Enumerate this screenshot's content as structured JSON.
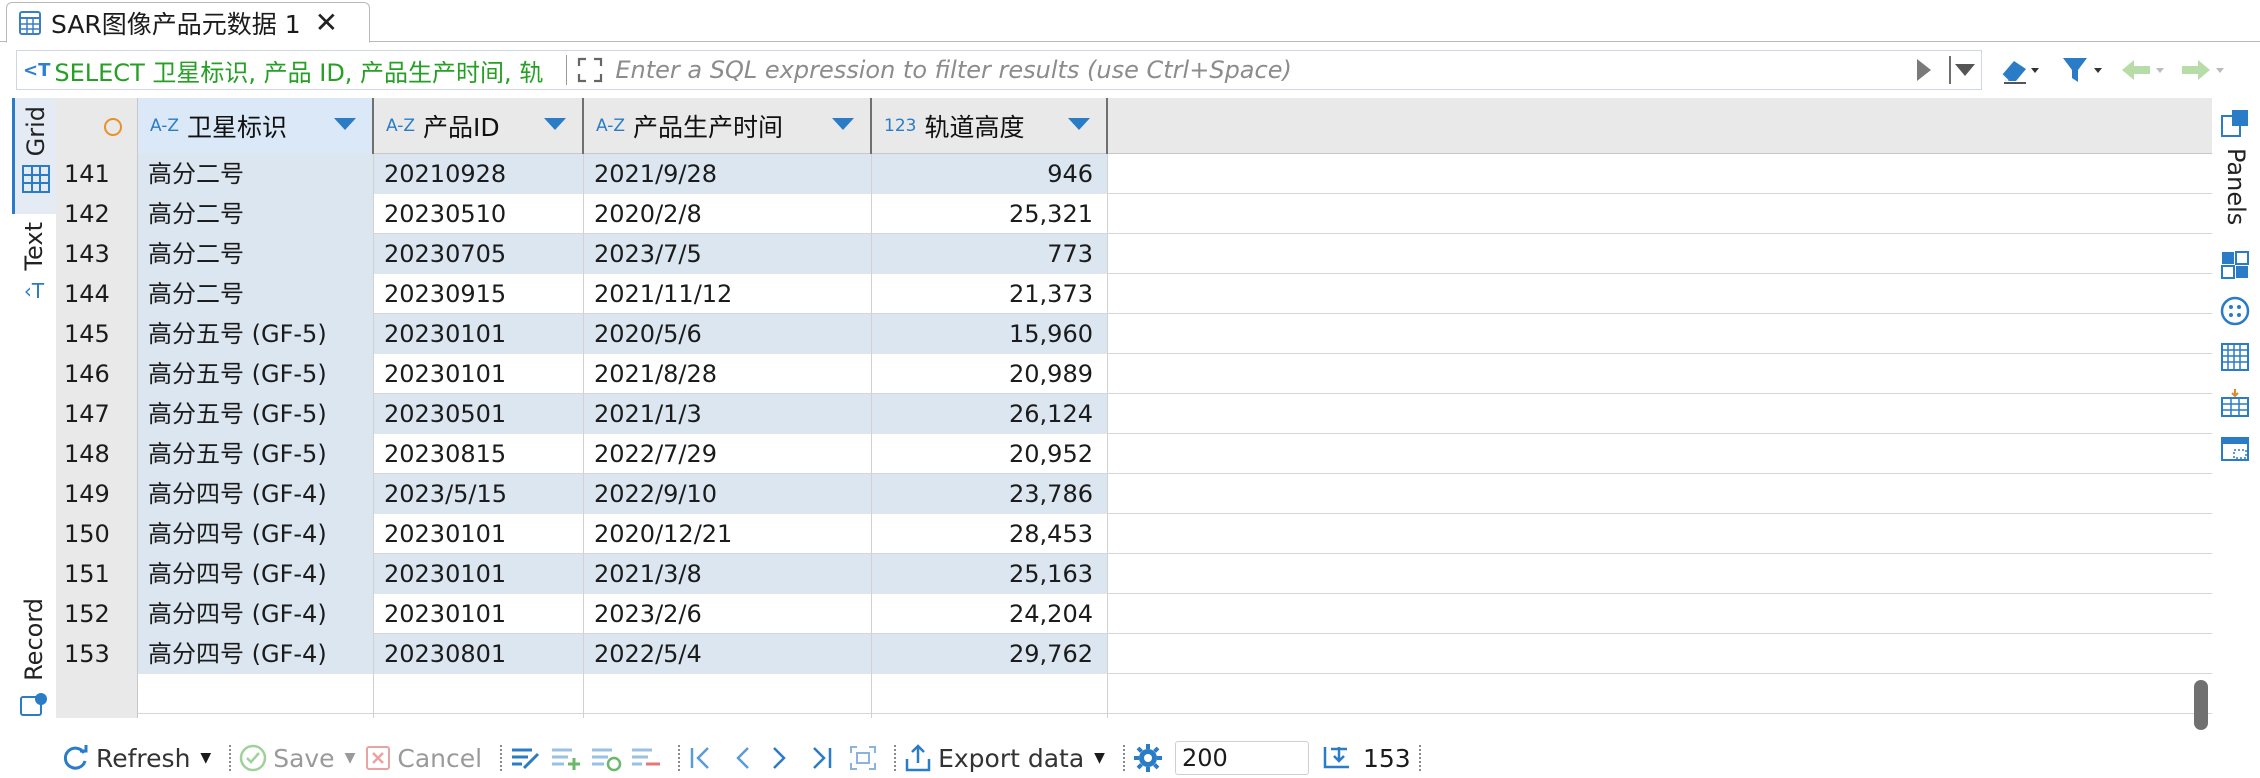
{
  "tab": {
    "title": "SAR图像产品元数据 1",
    "close_glyph": "✕"
  },
  "filter": {
    "sql_prefix_icon": "<T",
    "sql_text": "SELECT 卫星标识, 产品 ID, 产品生产时间, 轨",
    "placeholder": "Enter a SQL expression to filter results (use Ctrl+Space)"
  },
  "side_tabs": {
    "grid": "Grid",
    "text": "Text",
    "record": "Record"
  },
  "right_panel": {
    "label": "Panels"
  },
  "columns": [
    {
      "type": "A-Z",
      "name": "卫星标识"
    },
    {
      "type": "A-Z",
      "name": "产品ID"
    },
    {
      "type": "A-Z",
      "name": "产品生产时间"
    },
    {
      "type": "123",
      "name": "轨道高度"
    }
  ],
  "rows": [
    {
      "n": "141",
      "c": [
        "高分二号",
        "20210928",
        "2021/9/28",
        "946"
      ]
    },
    {
      "n": "142",
      "c": [
        "高分二号",
        "20230510",
        "2020/2/8",
        "25,321"
      ]
    },
    {
      "n": "143",
      "c": [
        "高分二号",
        "20230705",
        "2023/7/5",
        "773"
      ]
    },
    {
      "n": "144",
      "c": [
        "高分二号",
        "20230915",
        "2021/11/12",
        "21,373"
      ]
    },
    {
      "n": "145",
      "c": [
        "高分五号 (GF-5)",
        "20230101",
        "2020/5/6",
        "15,960"
      ]
    },
    {
      "n": "146",
      "c": [
        "高分五号 (GF-5)",
        "20230101",
        "2021/8/28",
        "20,989"
      ]
    },
    {
      "n": "147",
      "c": [
        "高分五号 (GF-5)",
        "20230501",
        "2021/1/3",
        "26,124"
      ]
    },
    {
      "n": "148",
      "c": [
        "高分五号 (GF-5)",
        "20230815",
        "2022/7/29",
        "20,952"
      ]
    },
    {
      "n": "149",
      "c": [
        "高分四号 (GF-4)",
        "2023/5/15",
        "2022/9/10",
        "23,786"
      ]
    },
    {
      "n": "150",
      "c": [
        "高分四号 (GF-4)",
        "20230101",
        "2020/12/21",
        "28,453"
      ]
    },
    {
      "n": "151",
      "c": [
        "高分四号 (GF-4)",
        "20230101",
        "2021/3/8",
        "25,163"
      ]
    },
    {
      "n": "152",
      "c": [
        "高分四号 (GF-4)",
        "20230101",
        "2023/2/6",
        "24,204"
      ]
    },
    {
      "n": "153",
      "c": [
        "高分四号 (GF-4)",
        "20230801",
        "2022/5/4",
        "29,762"
      ]
    }
  ],
  "bottom": {
    "refresh": "Refresh",
    "save": "Save",
    "cancel": "Cancel",
    "export": "Export data",
    "limit": "200",
    "count": "153"
  },
  "colors": {
    "accent": "#2a7cc7",
    "sql_green": "#25a025",
    "row_selected": "#dbe6f1"
  }
}
